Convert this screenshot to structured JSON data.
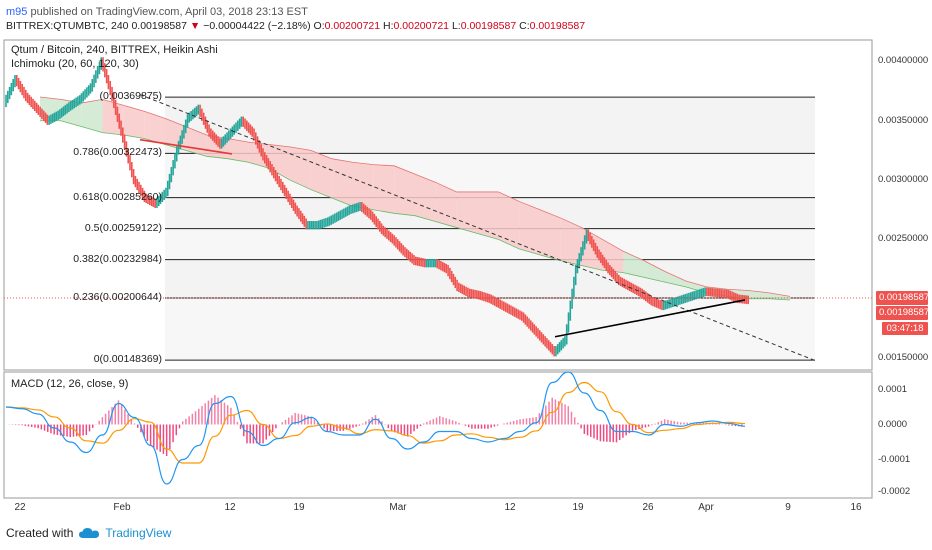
{
  "header": {
    "user": "m95",
    "published": "published on TradingView.com, April 03, 2018 23:13 EST",
    "symbol_prefix": "BITTREX:QTUMBTC, 240",
    "last_price": "0.00198587",
    "arrow": "▼",
    "change": "−0.00004422 (−2.18%)",
    "o_label": "O:",
    "o_value": "0.00200721",
    "h_label": "H:",
    "h_value": "0.00200721",
    "l_label": "L:",
    "l_value": "0.00198587",
    "c_label": "C:",
    "c_value": "0.00198587"
  },
  "main_pane": {
    "title": "Qtum / Bitcoin, 240, BITTREX, Heikin Ashi",
    "indicator": "Ichimoku (20, 60, 120, 30)"
  },
  "macd_pane": {
    "title": "MACD (12, 26, close, 9)"
  },
  "price_tags": {
    "last": "0.00198587",
    "close": "0.00198587",
    "timer": "03:47:18"
  },
  "footer": {
    "created": "Created with",
    "brand": "TradingView"
  },
  "colors": {
    "up": "#26a69a",
    "down": "#ef5350",
    "macd": "#2196f3",
    "signal": "#ff9800",
    "hist_pos": "#f06292",
    "cloud_red": "#f8c9c9",
    "cloud_green": "#cfe8cf"
  },
  "chart_data": [
    {
      "type": "line",
      "title": "Qtum / Bitcoin, 240, BITTREX, Heikin Ashi",
      "x_ticks": [
        "22",
        "Feb",
        "12",
        "19",
        "Mar",
        "12",
        "19",
        "26",
        "Apr",
        "9",
        "16"
      ],
      "y_ticks": [
        "0.00400000",
        "0.00350000",
        "0.00300000",
        "0.00250000",
        "0.00150000"
      ],
      "ylim": [
        0.0014,
        0.00418
      ],
      "fib_levels": [
        {
          "label": "(0.00369875)",
          "value": 0.00369875
        },
        {
          "label": "0.786(0.00322473)",
          "value": 0.00322473
        },
        {
          "label": "0.618(0.00285260)",
          "value": 0.0028526
        },
        {
          "label": "0.5(0.00259122)",
          "value": 0.00259122
        },
        {
          "label": "0.382(0.00232984)",
          "value": 0.00232984
        },
        {
          "label": "0.236(0.00200644)",
          "value": 0.00200644
        },
        {
          "label": "0(0.00148369)",
          "value": 0.00148369
        }
      ],
      "price_series": [
        [
          0.00365,
          0.00385,
          0.0037,
          0.0036,
          0.0035,
          0.00355,
          0.00362,
          0.00368,
          0.00378,
          0.004,
          0.0037,
          0.00335,
          0.003,
          0.00285,
          0.0028,
          0.0029,
          0.00325,
          0.00352,
          0.0036,
          0.0034,
          0.0033,
          0.0034,
          0.0035,
          0.0034,
          0.0032,
          0.00305,
          0.0029,
          0.00275,
          0.00262,
          0.00262,
          0.00265,
          0.0027,
          0.00275,
          0.00278,
          0.0027,
          0.00258,
          0.0025,
          0.0024,
          0.00232,
          0.0023,
          0.0023,
          0.00225,
          0.0021,
          0.00205,
          0.00203,
          0.002,
          0.00195,
          0.0019,
          0.00185,
          0.00175,
          0.00165,
          0.00155,
          0.00165,
          0.00225,
          0.00255,
          0.00238,
          0.00225,
          0.00215,
          0.0021,
          0.00205,
          0.00198,
          0.00194,
          0.00197,
          0.002,
          0.00203,
          0.00206,
          0.00205,
          0.00204,
          0.002,
          0.00199
        ]
      ],
      "cloud_top": [
        0.0037,
        0.00368,
        0.00365,
        0.00368,
        0.00363,
        0.00358,
        0.00352,
        0.00345,
        0.00338,
        0.00335,
        0.00332,
        0.0033,
        0.00328,
        0.00325,
        0.00318,
        0.00315,
        0.00313,
        0.00312,
        0.00305,
        0.00298,
        0.0029,
        0.0029,
        0.0029,
        0.00282,
        0.00275,
        0.00268,
        0.0026,
        0.0025,
        0.0024,
        0.00232,
        0.00223,
        0.00215,
        0.0021,
        0.00208,
        0.00207,
        0.00205,
        0.00202
      ],
      "cloud_bottom": [
        0.0035,
        0.0035,
        0.00345,
        0.0034,
        0.00338,
        0.00335,
        0.0033,
        0.00325,
        0.0032,
        0.00318,
        0.00315,
        0.0031,
        0.003,
        0.00292,
        0.00285,
        0.00278,
        0.00275,
        0.00272,
        0.0027,
        0.00265,
        0.0026,
        0.00255,
        0.0025,
        0.00242,
        0.00237,
        0.00232,
        0.00228,
        0.00224,
        0.00222,
        0.00218,
        0.00214,
        0.0021,
        0.00205,
        0.00202,
        0.002,
        0.002,
        0.00199
      ]
    },
    {
      "type": "line",
      "title": "MACD (12, 26, close, 9)",
      "y_ticks": [
        "0.0001",
        "0.0000",
        "-0.0001",
        "-0.0002"
      ],
      "ylim": [
        -0.00021,
        0.00015
      ],
      "series": [
        {
          "name": "MACD",
          "values": [
            5e-05,
            4.5e-05,
            3e-05,
            -1e-05,
            -5e-05,
            -8e-05,
            -3e-05,
            6e-05,
            2e-05,
            -6e-05,
            -0.00017,
            -0.0001,
            -6e-05,
            6e-05,
            8e-05,
            -2e-05,
            -6e-05,
            -4e-05,
            5e-06,
            2e-05,
            -2e-05,
            -3e-05,
            -3e-05,
            1.5e-05,
            -4e-05,
            -7e-05,
            -5e-05,
            -2e-05,
            -2e-05,
            -4e-05,
            -5e-05,
            -4e-05,
            -2e-05,
            5e-06,
            0.00012,
            0.00015,
            9e-05,
            4e-05,
            -2e-05,
            -2e-05,
            -3e-05,
            0.0,
            -5e-06,
            5e-06,
            1e-05,
            3e-06,
            -5e-06
          ]
        }
      ]
    }
  ]
}
